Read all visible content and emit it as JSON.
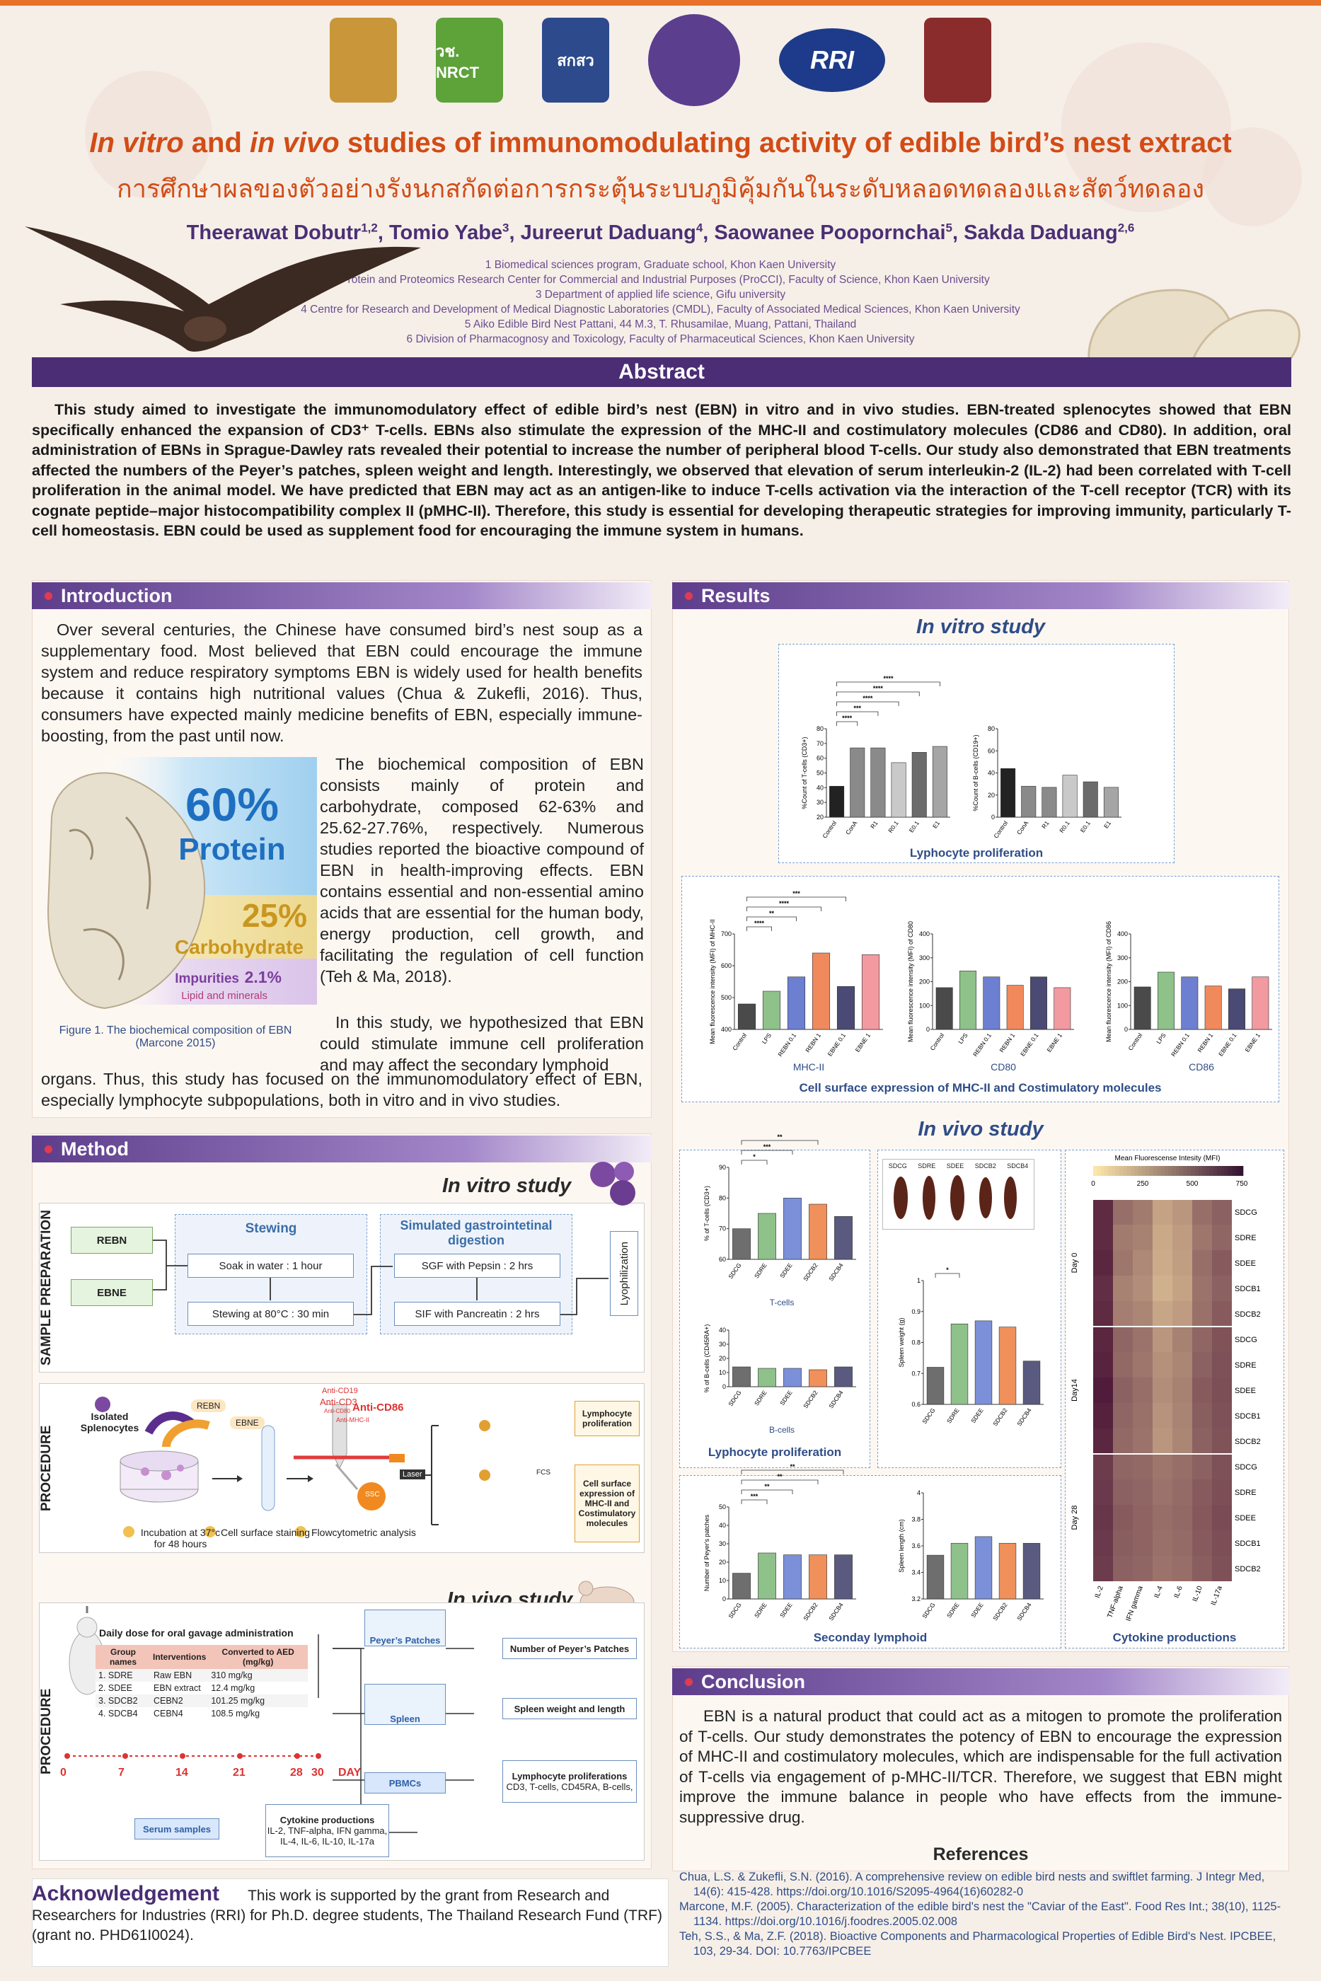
{
  "logos": [
    {
      "name": "kku-crest-logo",
      "text": "",
      "color": "#c9963a"
    },
    {
      "name": "nrct-logo",
      "text": "วช. NRCT",
      "color": "#5ea23a"
    },
    {
      "name": "tsri-logo",
      "text": "สกสว",
      "color": "#2c4a8c"
    },
    {
      "name": "sweet-seal-logo",
      "text": "",
      "color": "#5b3e8e"
    },
    {
      "name": "rri-logo",
      "text": "RRI",
      "color": "#1d3b8a"
    },
    {
      "name": "kku-spire-logo",
      "text": "",
      "color": "#8b2c2c"
    }
  ],
  "header": {
    "title_pre1": "In vitro",
    "title_mid1": " and ",
    "title_pre2": "in vivo",
    "title_rest": " studies of immunomodulating activity of edible bird’s nest extract",
    "title_th": "การศึกษาผลของตัวอย่างรังนกสกัดต่อการกระตุ้นระบบภูมิคุ้มกันในระดับหลอดทดลองและสัตว์ทดลอง",
    "authors": [
      {
        "name": "Theerawat Dobutr",
        "sup": "1,2"
      },
      {
        "name": "Tomio Yabe",
        "sup": "3"
      },
      {
        "name": "Jureerut Daduang",
        "sup": "4"
      },
      {
        "name": "Saowanee Poopornchai",
        "sup": "5"
      },
      {
        "name": "Sakda Daduang",
        "sup": "2,6"
      }
    ],
    "affiliations": [
      "1 Biomedical sciences program, Graduate school, Khon Kaen University",
      "2 Protein and Proteomics Research Center for Commercial and Industrial Purposes (ProCCI), Faculty of Science, Khon Kaen University",
      "3 Department of applied life science, Gifu university",
      "4 Centre for Research and Development of Medical Diagnostic Laboratories (CMDL), Faculty of Associated Medical Sciences, Khon Kaen University",
      "5 Aiko Edible Bird Nest Pattani, 44 M.3, T. Rhusamilae, Muang, Pattani, Thailand",
      "6 Division of Pharmacognosy and Toxicology, Faculty of Pharmaceutical Sciences, Khon Kaen University"
    ]
  },
  "abstract": {
    "heading": "Abstract",
    "text": "This study aimed to investigate the immunomodulatory effect of edible bird’s nest (EBN) in vitro and in vivo studies. EBN-treated splenocytes showed that EBN specifically enhanced the expansion of CD3⁺ T-cells. EBNs also stimulate the expression of the MHC-II and costimulatory molecules (CD86 and CD80). In addition, oral administration of EBNs in Sprague-Dawley rats revealed their potential to increase the number of peripheral blood T-cells. Our study also demonstrated that EBN treatments affected the numbers of the Peyer’s patches, spleen weight and length. Interestingly, we observed that elevation of serum interleukin-2 (IL-2) had been correlated with T-cell proliferation in the animal model. We have predicted that EBN may act as an antigen-like to induce T-cells activation via the interaction of the T-cell receptor (TCR) with its cognate peptide–major histocompatibility complex II (pMHC-II). Therefore, this study is essential for developing therapeutic strategies for improving immunity, particularly T-cell homeostasis. EBN could be used as supplement food for encouraging the immune system in humans."
  },
  "introduction": {
    "heading": "Introduction",
    "p1": "Over several centuries, the Chinese have consumed bird’s nest soup as a supplementary food. Most believed that EBN could encourage the immune system and reduce respiratory symptoms EBN is widely used for health benefits because it contains high nutritional values (Chua & Zukefli, 2016). Thus, consumers have expected mainly medicine benefits of EBN, especially immune-boosting, from the past until now.",
    "p2": "The biochemical composition of EBN consists mainly of protein and carbohydrate, composed 62-63% and 25.62-27.76%, respectively. Numerous studies reported the bioactive compound of EBN in health-improving effects. EBN contains essential and non-essential amino acids that are essential for the human body, energy production, cell growth, and facilitating the regulation of cell function (Teh & Ma, 2018).",
    "p3": "In this study, we hypothesized that EBN could stimulate immune cell proliferation and may affect the secondary lymphoid",
    "p4": "organs. Thus, this study has focused on the immunomodulatory effect of EBN, especially lymphocyte subpopulations, both in vitro and in vivo studies.",
    "fig_protein_pct": "60%",
    "fig_protein": "Protein",
    "fig_carb_pct": "25%",
    "fig_carb": "Carbohydrate",
    "fig_imp": "Impurities",
    "fig_imp_pct": "2.1%",
    "fig_lipid": "Lipid and minerals",
    "fig_caption": "Figure 1. The biochemical composition of EBN (Marcone 2015)"
  },
  "method": {
    "heading": "Method",
    "invitro_title": "In vitro study",
    "invivo_title": "In vivo study",
    "sample_prep": "SAMPLE PREPARATION",
    "procedure": "PROCEDURE",
    "reb": "REBN",
    "ebne": "EBNE",
    "stewing": "Stewing",
    "soak": "Soak in water : 1 hour",
    "stew": "Stewing at 80°C : 30 min",
    "sim": "Simulated gastrointetinal digestion",
    "sgf": "SGF with Pepsin : 2 hrs",
    "sif": "SIF with Pancreatin : 2 hrs",
    "lyo": "Lyophilization",
    "isolated": "Isolated Splenocytes",
    "reb_tag": "REBN",
    "ebne_tag": "EBNE",
    "ab1": "Anti-CD3",
    "ab2": "Anti-CD86",
    "ab3": "Anti-CD19",
    "ab4": "Anti-CD80",
    "ab5": "Anti-MHC-II",
    "laser": "Laser",
    "fcs": "FCS",
    "ssc": "SSC",
    "step1": "Incubation at 37°c for 48 hours",
    "step2": "Cell surface staining",
    "step3": "Flowcytometric analysis",
    "out1": "Lymphocyte proliferation",
    "out2": "Cell surface expression of MHC-II and Costimulatory molecules",
    "dose_title": "Daily dose for oral gavage administration",
    "dose_headers": [
      "Group names",
      "Interventions",
      "Converted to AED (mg/kg)"
    ],
    "dose_rows": [
      [
        "1. SDRE",
        "Raw EBN",
        "310 mg/kg"
      ],
      [
        "2. SDEE",
        "EBN extract",
        "12.4 mg/kg"
      ],
      [
        "3. SDCB2",
        "CEBN2",
        "101.25 mg/kg"
      ],
      [
        "4. SDCB4",
        "CEBN4",
        "108.5 mg/kg"
      ]
    ],
    "days": [
      "0",
      "7",
      "14",
      "21",
      "28",
      "30",
      "DAY"
    ],
    "peyer": "Peyer’s Patches",
    "spleen": "Spleen",
    "pbmc": "PBMCs",
    "serum": "Serum samples",
    "r_peyer": "Number of Peyer’s Patches",
    "r_spleen": "Spleen weight and length",
    "r_lymph": "Lymphocyte proliferations",
    "r_lymph_sub": "CD3, T-cells, CD45RA, B-cells,",
    "cyto": "Cytokine productions",
    "cyto_sub": "IL-2, TNF-alpha, IFN gamma, IL-4, IL-6, IL-10, IL-17a"
  },
  "results": {
    "heading": "Results",
    "invitro_title": "In vitro study",
    "invivo_title": "In vivo study",
    "lympho_caption": "Lyphocyte proliferation",
    "surface_caption": "Cell surface expression of MHC-II and Costimulatory molecules",
    "invivo_lympho_caption": "Lyphocyte proliferation",
    "secondary_caption": "Seconday lymphoid",
    "cytokine_caption": "Cytokine productions",
    "tcells_label": "T-cells",
    "bcells_label": "B-cells"
  },
  "chart_data": [
    {
      "id": "tcell-invitro",
      "type": "bar",
      "categories": [
        "Control",
        "ConA",
        "R1",
        "R0.1",
        "E0.1",
        "E1"
      ],
      "values": [
        41,
        67,
        67,
        57,
        64,
        68
      ],
      "ylabel": "%Count of T-cells (CD3+)",
      "ylim": [
        20,
        80
      ],
      "yticks": [
        20,
        30,
        40,
        50,
        60,
        70,
        80
      ],
      "significance": [
        "****",
        "***",
        "****",
        "****",
        "****"
      ]
    },
    {
      "id": "bcell-invitro",
      "type": "bar",
      "categories": [
        "Control",
        "ConA",
        "R1",
        "R0.1",
        "E0.1",
        "E1"
      ],
      "values": [
        44,
        28,
        27,
        38,
        32,
        27
      ],
      "ylabel": "%Count of B-cells (CD19+)",
      "ylim": [
        0,
        80
      ],
      "yticks": [
        0,
        20,
        40,
        60,
        80
      ]
    },
    {
      "id": "mhc2",
      "type": "bar",
      "categories": [
        "Control",
        "LPS",
        "REBN 0.1",
        "REBN 1",
        "EBNE 0.1",
        "EBNE 1"
      ],
      "values": [
        480,
        520,
        565,
        640,
        535,
        635
      ],
      "ylabel": "Mean fluorescence intensity (MFI) of MHC-II",
      "ylim": [
        400,
        700
      ],
      "yticks": [
        400,
        500,
        600,
        700
      ],
      "xlabel": "MHC-II",
      "significance": [
        "****",
        "**",
        "****",
        "***"
      ]
    },
    {
      "id": "cd80",
      "type": "bar",
      "categories": [
        "Control",
        "LPS",
        "REBN 0.1",
        "REBN 1",
        "EBNE 0.1",
        "EBNE 1"
      ],
      "values": [
        175,
        245,
        220,
        185,
        220,
        175
      ],
      "ylabel": "Mean fluorescence intensity (MFI) of CD80",
      "ylim": [
        0,
        400
      ],
      "yticks": [
        0,
        100,
        200,
        300,
        400
      ],
      "xlabel": "CD80"
    },
    {
      "id": "cd86",
      "type": "bar",
      "categories": [
        "Control",
        "LPS",
        "REBN 0.1",
        "REBN 1",
        "EBNE 0.1",
        "EBNE 1"
      ],
      "values": [
        178,
        240,
        220,
        182,
        170,
        220
      ],
      "ylabel": "Mean fluorescence intensity (MFI) of CD86",
      "ylim": [
        0,
        400
      ],
      "yticks": [
        0,
        100,
        200,
        300,
        400
      ],
      "xlabel": "CD86"
    },
    {
      "id": "tcell-invivo",
      "type": "bar",
      "categories": [
        "SDCG",
        "SDRE",
        "SDEE",
        "SDCB2",
        "SDCB4"
      ],
      "values": [
        70,
        75,
        80,
        78,
        74
      ],
      "ylabel": "% of T-cells (CD3+)",
      "ylim": [
        60,
        90
      ],
      "yticks": [
        60,
        70,
        80,
        90
      ],
      "significance": [
        "*",
        "***",
        "**"
      ]
    },
    {
      "id": "bcell-invivo",
      "type": "bar",
      "categories": [
        "SDCG",
        "SDRE",
        "SDEE",
        "SDCB2",
        "SDCB4"
      ],
      "values": [
        14,
        13,
        13,
        12,
        14
      ],
      "ylabel": "% of B-cells (CD45RA+)",
      "ylim": [
        0,
        40
      ],
      "yticks": [
        0,
        10,
        20,
        30,
        40
      ]
    },
    {
      "id": "spleen-weight",
      "type": "bar",
      "categories": [
        "SDCG",
        "SDRE",
        "SDEE",
        "SDCB2",
        "SDCB4"
      ],
      "values": [
        0.72,
        0.86,
        0.87,
        0.85,
        0.74
      ],
      "ylabel": "Spleen weight (g)",
      "ylim": [
        0.6,
        1.0
      ],
      "yticks": [
        0.6,
        0.7,
        0.8,
        0.9,
        1.0
      ],
      "significance": [
        "*"
      ]
    },
    {
      "id": "peyers",
      "type": "bar",
      "categories": [
        "SDCG",
        "SDRE",
        "SDEE",
        "SDCB2",
        "SDCB4"
      ],
      "values": [
        14,
        25,
        24,
        24,
        24
      ],
      "ylabel": "Number of Peyer's patches",
      "ylim": [
        0,
        50
      ],
      "yticks": [
        0,
        10,
        20,
        30,
        40,
        50
      ],
      "significance": [
        "***",
        "**",
        "**",
        "**"
      ]
    },
    {
      "id": "spleen-length",
      "type": "bar",
      "categories": [
        "SDCG",
        "SDRE",
        "SDEE",
        "SDCB2",
        "SDCB4"
      ],
      "values": [
        3.53,
        3.62,
        3.67,
        3.62,
        3.62
      ],
      "ylabel": "Spleen length (cm)",
      "ylim": [
        3.2,
        4.0
      ],
      "yticks": [
        3.2,
        3.4,
        3.6,
        3.8,
        4.0
      ]
    },
    {
      "id": "cytokine-heatmap",
      "type": "heatmap",
      "title": "Mean Fluorescense Intesity (MFI)",
      "x": [
        "IL-2",
        "TNF-alpha",
        "IFN gamma",
        "IL-4",
        "IL-6",
        "IL-10",
        "IL-17a"
      ],
      "rows": [
        "SDCG",
        "SDRE",
        "SDEE",
        "SDCB1",
        "SDCB2",
        "SDCG",
        "SDRE",
        "SDEE",
        "SDCB1",
        "SDCB2",
        "SDCG",
        "SDRE",
        "SDEE",
        "SDCB1",
        "SDCB2"
      ],
      "groups": [
        "Day 0",
        "Day14",
        "Day 28"
      ],
      "scale": [
        0,
        250,
        500,
        750
      ],
      "values": [
        [
          700,
          450,
          400,
          250,
          300,
          450,
          500
        ],
        [
          700,
          400,
          380,
          230,
          280,
          420,
          480
        ],
        [
          720,
          420,
          350,
          220,
          270,
          450,
          520
        ],
        [
          690,
          380,
          330,
          200,
          250,
          430,
          500
        ],
        [
          700,
          390,
          360,
          240,
          280,
          440,
          520
        ],
        [
          720,
          480,
          430,
          300,
          380,
          480,
          550
        ],
        [
          730,
          470,
          420,
          320,
          360,
          500,
          560
        ],
        [
          760,
          500,
          450,
          330,
          380,
          520,
          570
        ],
        [
          740,
          480,
          440,
          310,
          370,
          510,
          560
        ],
        [
          720,
          470,
          430,
          300,
          360,
          500,
          550
        ],
        [
          640,
          480,
          470,
          420,
          450,
          500,
          560
        ],
        [
          650,
          500,
          480,
          430,
          460,
          520,
          570
        ],
        [
          660,
          520,
          490,
          450,
          470,
          530,
          580
        ],
        [
          650,
          510,
          490,
          440,
          460,
          520,
          570
        ],
        [
          640,
          500,
          480,
          430,
          450,
          510,
          560
        ]
      ]
    }
  ],
  "conclusion": {
    "heading": "Conclusion",
    "text": "EBN is a natural product that could act as a mitogen to promote the proliferation of T-cells. Our study demonstrates the potency of EBN to encourage the expression of MHC-II and costimulatory molecules, which are indispensable for the full activation of T-cells via engagement of p-MHC-II/TCR. Therefore, we suggest that EBN might improve the immune balance in people who have effects from the immune-suppressive drug."
  },
  "references": {
    "heading": "References",
    "items": [
      "Chua, L.S. & Zukefli, S.N. (2016). A comprehensive review on edible bird nests and swiftlet farming. J Integr Med, 14(6): 415-428. https://doi.org/10.1016/S2095-4964(16)60282-0",
      "Marcone, M.F. (2005). Characterization of the edible bird's nest the \"Caviar of the East\". Food Res Int.; 38(10), 1125-1134. https://doi.org/10.1016/j.foodres.2005.02.008",
      "Teh, S.S., & Ma, Z.F. (2018). Bioactive Components and Pharmacological Properties of Edible Bird's Nest. IPCBEE, 103, 29-34. DOI: 10.7763/IPCBEE"
    ]
  },
  "acknowledgement": {
    "heading": "Acknowledgement",
    "text": "This work is supported by the grant from Research and Researchers for Industries (RRI) for Ph.D. degree students, The Thailand Research Fund (TRF) (grant no. PHD61I0024)."
  },
  "colors": {
    "accent": "#d24c16",
    "purple": "#4a2d74",
    "blue": "#2f4d87"
  }
}
